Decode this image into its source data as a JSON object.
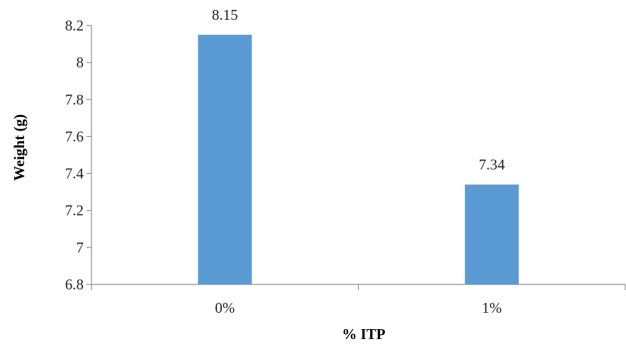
{
  "chart_data": {
    "type": "bar",
    "title": "",
    "xlabel": "% ITP",
    "ylabel": "Weight (g)",
    "categories": [
      "0%",
      "1%"
    ],
    "values": [
      8.15,
      7.34
    ],
    "data_labels": [
      "8.15",
      "7.34"
    ],
    "ylim": [
      6.8,
      8.2
    ],
    "yticks": [
      6.8,
      7,
      7.2,
      7.4,
      7.6,
      7.8,
      8,
      8.2
    ],
    "ytick_labels": [
      "6.8",
      "7",
      "7.2",
      "7.4",
      "7.6",
      "7.8",
      "8",
      "8.2"
    ],
    "grid": false,
    "legend": "none",
    "bar_color": "#5b9bd5",
    "axis_color": "#8c8c8c"
  }
}
